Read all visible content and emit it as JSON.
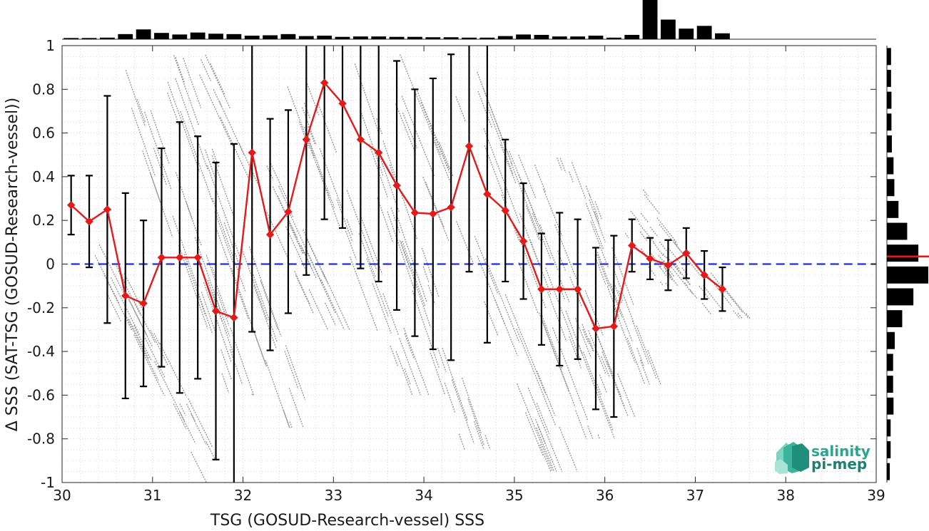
{
  "chart_data": {
    "type": "line",
    "title": "",
    "xlabel": "TSG (GOSUD-Research-vessel) SSS",
    "ylabel": "Δ SSS (SAT-TSG (GOSUD-Research-vessel))",
    "xlim": [
      30,
      39
    ],
    "ylim": [
      -1,
      1
    ],
    "xticks": [
      30,
      31,
      32,
      33,
      34,
      35,
      36,
      37,
      38,
      39
    ],
    "yticks": [
      -1,
      -0.8,
      -0.6,
      -0.4,
      -0.2,
      0,
      0.2,
      0.4,
      0.6,
      0.8,
      1
    ],
    "grid": true,
    "zero_line": {
      "y": 0,
      "color": "#1f2fd6",
      "style": "dashed"
    },
    "series": [
      {
        "kind": "binned-mean",
        "color": "#e41a1a",
        "x": [
          30.1,
          30.3,
          30.5,
          30.7,
          30.9,
          31.1,
          31.3,
          31.5,
          31.7,
          31.9,
          32.1,
          32.3,
          32.5,
          32.7,
          32.9,
          33.1,
          33.3,
          33.5,
          33.7,
          33.9,
          34.1,
          34.3,
          34.5,
          34.7,
          34.9,
          35.1,
          35.3,
          35.5,
          35.7,
          35.9,
          36.1,
          36.3,
          36.5,
          36.7,
          36.9,
          37.1,
          37.3
        ],
        "y": [
          0.27,
          0.195,
          0.25,
          -0.145,
          -0.18,
          0.03,
          0.03,
          0.03,
          -0.215,
          -0.245,
          0.51,
          0.135,
          0.24,
          0.57,
          0.83,
          0.735,
          0.57,
          0.51,
          0.36,
          0.235,
          0.23,
          0.26,
          0.54,
          0.32,
          0.245,
          0.105,
          -0.115,
          -0.115,
          -0.115,
          -0.295,
          -0.285,
          0.085,
          0.025,
          -0.005,
          0.05,
          -0.05,
          -0.115
        ],
        "err": [
          0.135,
          0.21,
          0.52,
          0.47,
          0.38,
          0.5,
          0.62,
          0.555,
          0.68,
          0.795,
          0.82,
          0.53,
          0.465,
          0.62,
          0.625,
          0.57,
          0.59,
          0.59,
          0.57,
          0.565,
          0.62,
          0.7,
          0.575,
          0.68,
          0.325,
          0.265,
          0.255,
          0.35,
          0.32,
          0.37,
          0.415,
          0.12,
          0.095,
          0.115,
          0.115,
          0.11,
          0.1
        ]
      }
    ],
    "scatter_bands": [
      {
        "x0": 30.25,
        "y0": 0.2,
        "x1": 31.7,
        "y1": -1.0,
        "w": 0.16
      },
      {
        "x0": 30.75,
        "y0": 0.9,
        "x1": 32.0,
        "y1": -0.6,
        "w": 0.18
      },
      {
        "x0": 31.1,
        "y0": 1.0,
        "x1": 32.6,
        "y1": -0.75,
        "w": 0.2
      },
      {
        "x0": 31.55,
        "y0": 1.0,
        "x1": 33.0,
        "y1": -0.3,
        "w": 0.18
      },
      {
        "x0": 32.6,
        "y0": 0.85,
        "x1": 33.9,
        "y1": -0.6,
        "w": 0.16
      },
      {
        "x0": 33.1,
        "y0": 0.95,
        "x1": 34.6,
        "y1": -0.85,
        "w": 0.16
      },
      {
        "x0": 33.6,
        "y0": 1.0,
        "x1": 35.5,
        "y1": -0.95,
        "w": 0.2
      },
      {
        "x0": 34.4,
        "y0": 0.9,
        "x1": 35.95,
        "y1": -0.8,
        "w": 0.2
      },
      {
        "x0": 35.0,
        "y0": 0.55,
        "x1": 36.2,
        "y1": -0.7,
        "w": 0.16
      },
      {
        "x0": 35.6,
        "y0": 0.5,
        "x1": 36.55,
        "y1": -0.55,
        "w": 0.14
      },
      {
        "x0": 36.25,
        "y0": 0.35,
        "x1": 37.4,
        "y1": -0.25,
        "w": 0.22
      },
      {
        "x0": 36.35,
        "y0": 0.15,
        "x1": 36.8,
        "y1": -0.1,
        "w": 0.18
      }
    ],
    "top_histogram": {
      "color": "#000000",
      "x": [
        30.1,
        30.3,
        30.5,
        30.7,
        30.9,
        31.1,
        31.3,
        31.5,
        31.7,
        31.9,
        32.1,
        32.3,
        32.5,
        32.7,
        32.9,
        33.1,
        33.3,
        33.5,
        33.7,
        33.9,
        34.1,
        34.3,
        34.5,
        34.7,
        34.9,
        35.1,
        35.3,
        35.5,
        35.7,
        35.9,
        36.1,
        36.3,
        36.5,
        36.7,
        36.9,
        37.1,
        37.3
      ],
      "counts": [
        0.03,
        0.03,
        0.04,
        0.13,
        0.25,
        0.16,
        0.12,
        0.17,
        0.14,
        0.13,
        0.09,
        0.1,
        0.13,
        0.08,
        0.09,
        0.06,
        0.07,
        0.07,
        0.06,
        0.06,
        0.05,
        0.05,
        0.04,
        0.04,
        0.08,
        0.12,
        0.11,
        0.07,
        0.07,
        0.09,
        0.04,
        0.11,
        1.0,
        0.5,
        0.27,
        0.34,
        0.15
      ]
    },
    "right_histogram": {
      "color": "#000000",
      "median_line": {
        "y": 0.035,
        "color": "#e41a1a"
      },
      "y": [
        0.95,
        0.85,
        0.75,
        0.65,
        0.55,
        0.45,
        0.35,
        0.25,
        0.15,
        0.05,
        -0.05,
        -0.15,
        -0.25,
        -0.35,
        -0.45,
        -0.55,
        -0.65,
        -0.75,
        -0.85,
        -0.95
      ],
      "counts": [
        0.1,
        0.1,
        0.11,
        0.11,
        0.12,
        0.16,
        0.18,
        0.28,
        0.49,
        0.76,
        1.0,
        0.64,
        0.37,
        0.19,
        0.15,
        0.15,
        0.16,
        0.09,
        0.09,
        0.07
      ]
    }
  },
  "logo": {
    "line1": "salinity",
    "line2": "pi-mep",
    "color1": "#2aa58f",
    "color2": "#1b7f73"
  }
}
